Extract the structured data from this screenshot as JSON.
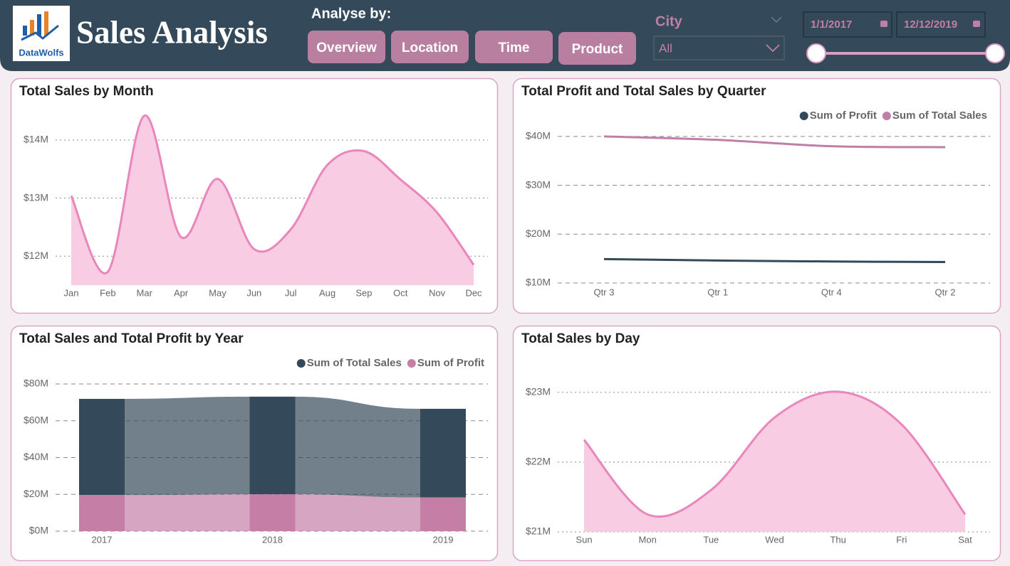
{
  "header": {
    "logo_text": "DataWolfs",
    "title": "Sales Analysis",
    "analyse_label": "Analyse by:",
    "buttons": [
      "Overview",
      "Location",
      "Time",
      "Product"
    ],
    "city_label": "City",
    "city_value": "All",
    "start_date": "1/1/2017",
    "end_date": "12/12/2019"
  },
  "chart_data": [
    {
      "type": "area",
      "title": "Total Sales by Month",
      "categories": [
        "Jan",
        "Feb",
        "Mar",
        "Apr",
        "May",
        "Jun",
        "Jul",
        "Aug",
        "Sep",
        "Oct",
        "Nov",
        "Dec"
      ],
      "values": [
        13040000,
        11730000,
        14420000,
        12330000,
        13330000,
        12120000,
        12460000,
        13570000,
        13810000,
        13320000,
        12750000,
        11850000
      ],
      "color": "#e986bb",
      "area_color": "#f8cce3",
      "ylim": [
        11500000,
        14600000
      ],
      "yticks": [
        {
          "value": 12000000,
          "label": "$12M"
        },
        {
          "value": 13000000,
          "label": "$13M"
        },
        {
          "value": 14000000,
          "label": "$14M"
        }
      ],
      "grid": true
    },
    {
      "type": "line",
      "title": "Total Profit and Total Sales by Quarter",
      "categories": [
        "Qtr 3",
        "Qtr 1",
        "Qtr 4",
        "Qtr 2"
      ],
      "series": [
        {
          "name": "Sum of Profit",
          "color": "#344a5a",
          "values": [
            14900000,
            14600000,
            14400000,
            14300000
          ]
        },
        {
          "name": "Sum of Total Sales",
          "color": "#c07fa6",
          "values": [
            40000000,
            39300000,
            38000000,
            37800000
          ]
        }
      ],
      "ylim": [
        10000000,
        41000000
      ],
      "yticks": [
        {
          "value": 10000000,
          "label": "$10M"
        },
        {
          "value": 20000000,
          "label": "$20M"
        },
        {
          "value": 30000000,
          "label": "$30M"
        },
        {
          "value": 40000000,
          "label": "$40M"
        }
      ],
      "grid": true,
      "legend": "top-right"
    },
    {
      "type": "bar",
      "stacked": true,
      "title": "Total Sales and Total Profit by Year",
      "categories": [
        "2017",
        "2018",
        "2019"
      ],
      "series": [
        {
          "name": "Sum of Total Sales",
          "color": "#344a5a",
          "values": [
            52300000,
            53100000,
            48200000
          ]
        },
        {
          "name": "Sum of Profit",
          "color": "#c57fa7",
          "values": [
            19600000,
            20000000,
            18300000
          ]
        }
      ],
      "ylim": [
        0,
        80000000
      ],
      "yticks": [
        {
          "value": 0,
          "label": "$0M"
        },
        {
          "value": 20000000,
          "label": "$20M"
        },
        {
          "value": 40000000,
          "label": "$40M"
        },
        {
          "value": 60000000,
          "label": "$60M"
        },
        {
          "value": 80000000,
          "label": "$80M"
        }
      ],
      "grid": true,
      "legend": "top-right"
    },
    {
      "type": "area",
      "title": "Total Sales by Day",
      "categories": [
        "Sun",
        "Mon",
        "Tue",
        "Wed",
        "Thu",
        "Fri",
        "Sat"
      ],
      "values": [
        22320000,
        21250000,
        21600000,
        22640000,
        23010000,
        22540000,
        21250000
      ],
      "color": "#e986bb",
      "area_color": "#f8cce3",
      "ylim": [
        21000000,
        23100000
      ],
      "yticks": [
        {
          "value": 21000000,
          "label": "$21M"
        },
        {
          "value": 22000000,
          "label": "$22M"
        },
        {
          "value": 23000000,
          "label": "$23M"
        }
      ],
      "grid": true
    }
  ]
}
